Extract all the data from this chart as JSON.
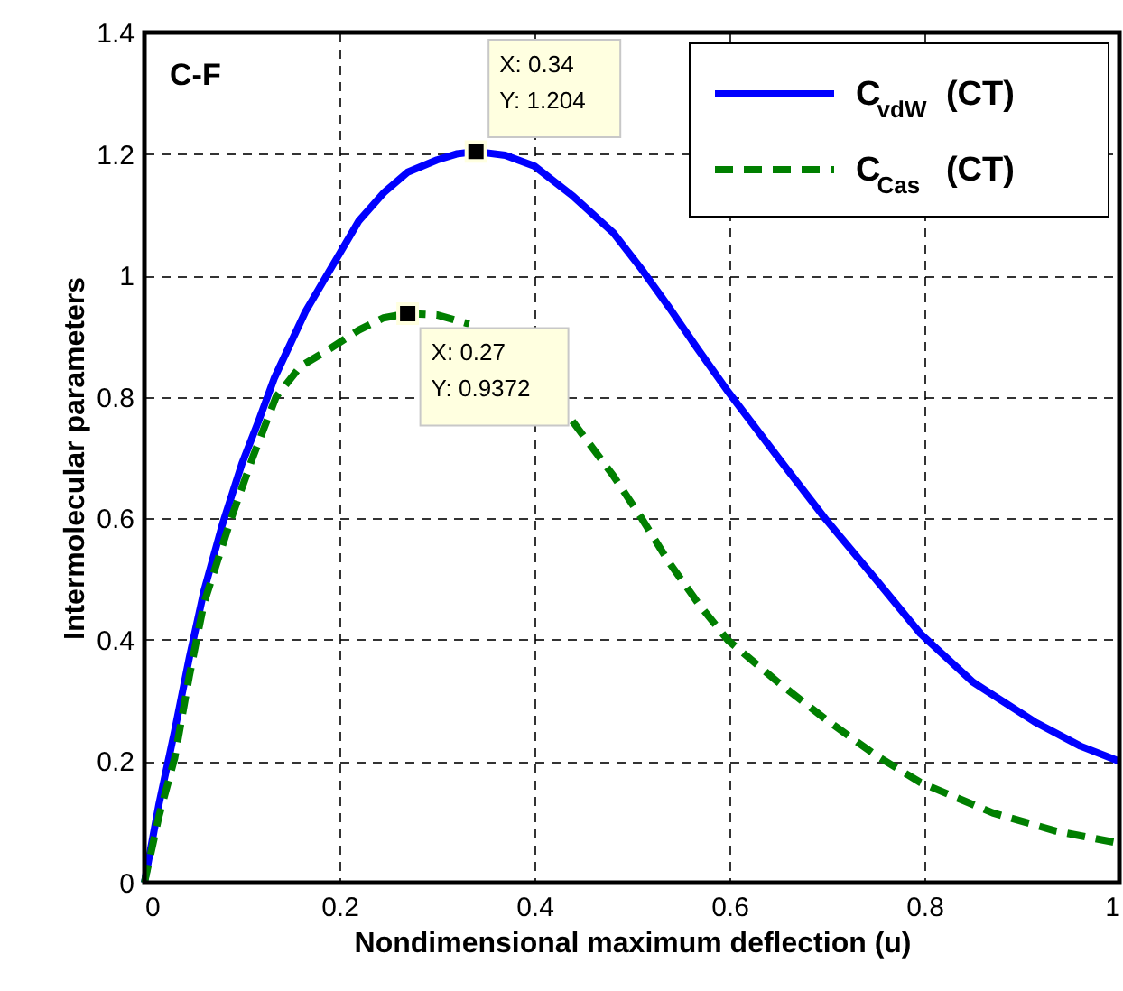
{
  "chart_data": {
    "type": "line",
    "xlabel": "Nondimensional maximum deflection  (u)",
    "ylabel": "Intermolecular parameters",
    "xlim": [
      0,
      1
    ],
    "ylim": [
      0,
      1.4
    ],
    "xticks": [
      0,
      0.2,
      0.4,
      0.6,
      0.8,
      1
    ],
    "yticks": [
      0,
      0.2,
      0.4,
      0.6,
      0.8,
      1,
      1.2,
      1.4
    ],
    "grid": true,
    "legend": "top right",
    "annotations": [
      "C-F",
      {
        "text": "X: 0.34\nY: 1.204",
        "x": 0.34,
        "y": 1.204
      },
      {
        "text": "X: 0.27\nY: 0.9372",
        "x": 0.27,
        "y": 0.9372
      }
    ],
    "series": [
      {
        "name": "C$_{vdW}$ (CT)",
        "color": "#0000ff",
        "line_style": "solid",
        "x": [
          0,
          0.015,
          0.031,
          0.046,
          0.061,
          0.08,
          0.1,
          0.117,
          0.133,
          0.165,
          0.198,
          0.22,
          0.246,
          0.27,
          0.3,
          0.32,
          0.34,
          0.37,
          0.4,
          0.44,
          0.481,
          0.51,
          0.537,
          0.567,
          0.598,
          0.65,
          0.698,
          0.75,
          0.796,
          0.85,
          0.913,
          0.96,
          1.0
        ],
        "values": [
          0,
          0.13,
          0.25,
          0.37,
          0.48,
          0.59,
          0.69,
          0.76,
          0.83,
          0.94,
          1.03,
          1.09,
          1.137,
          1.17,
          1.19,
          1.2,
          1.204,
          1.198,
          1.18,
          1.13,
          1.07,
          1.01,
          0.95,
          0.88,
          0.81,
          0.7,
          0.6,
          0.5,
          0.41,
          0.33,
          0.265,
          0.225,
          0.2
        ]
      },
      {
        "name": "C$_{Cas}$ (CT)",
        "color": "#007f00",
        "line_style": "dashed",
        "x": [
          0,
          0.015,
          0.031,
          0.046,
          0.061,
          0.075,
          0.089,
          0.111,
          0.135,
          0.16,
          0.191,
          0.22,
          0.245,
          0.27,
          0.3,
          0.333,
          0.37,
          0.4,
          0.439,
          0.481,
          0.51,
          0.537,
          0.568,
          0.598,
          0.65,
          0.698,
          0.75,
          0.796,
          0.87,
          0.935,
          1.0
        ],
        "values": [
          0,
          0.11,
          0.205,
          0.34,
          0.46,
          0.53,
          0.6,
          0.7,
          0.8,
          0.85,
          0.88,
          0.91,
          0.93,
          0.9372,
          0.935,
          0.92,
          null,
          null,
          0.76,
          0.67,
          0.6,
          0.53,
          0.46,
          0.4,
          0.33,
          0.27,
          0.21,
          0.165,
          0.115,
          0.085,
          0.065
        ]
      }
    ]
  }
}
